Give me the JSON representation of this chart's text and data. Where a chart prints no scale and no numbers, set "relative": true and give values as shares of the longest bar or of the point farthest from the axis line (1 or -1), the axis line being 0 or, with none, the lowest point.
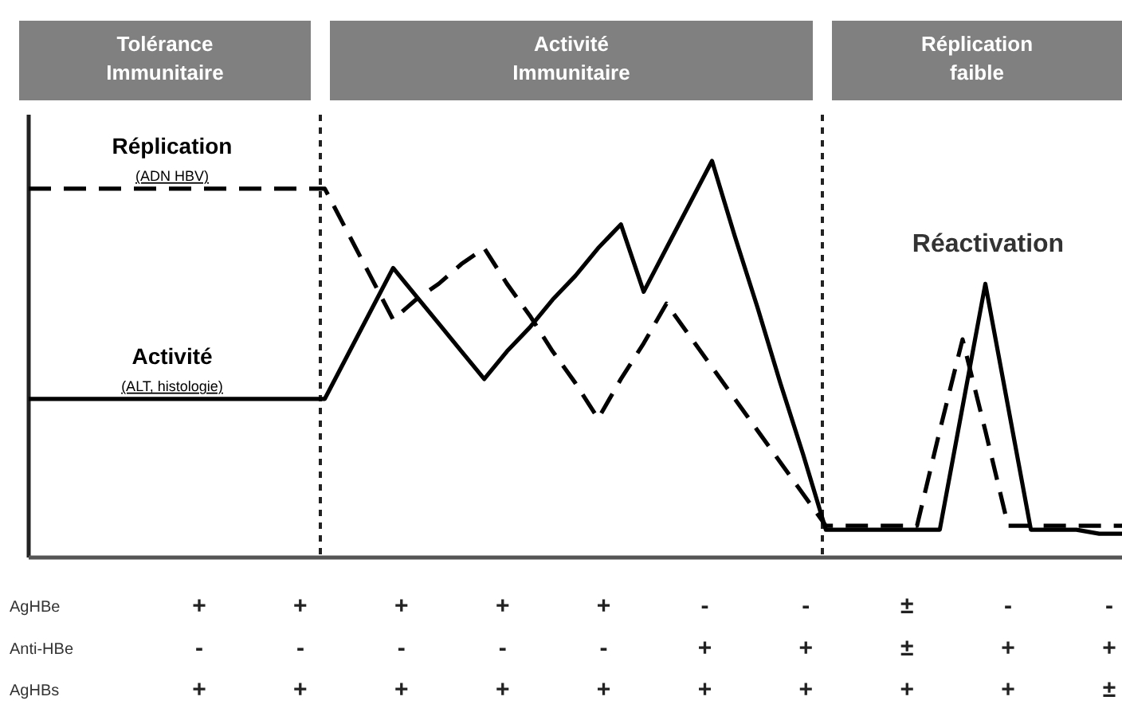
{
  "chart_data": [
    {
      "type": "line",
      "relative": true,
      "legend": false,
      "categories": [
        null,
        null,
        null,
        null,
        null,
        null,
        null,
        null,
        null,
        null,
        null,
        null,
        null,
        null,
        null,
        null,
        null,
        null,
        null,
        null,
        null,
        null,
        null,
        null,
        null,
        null,
        null,
        null,
        null,
        null,
        null,
        null,
        null,
        null,
        null,
        null,
        null,
        null,
        null,
        null,
        null,
        null,
        null,
        null,
        null,
        null,
        null,
        null,
        null
      ],
      "series": [
        {
          "name": "Réplication (ADN HBV)",
          "color": "#000000",
          "line_style": "dashed",
          "values": [
            0.93,
            0.93,
            0.93,
            0.93,
            0.93,
            0.93,
            0.93,
            0.93,
            0.93,
            0.93,
            0.93,
            0.93,
            0.93,
            0.93,
            0.82,
            0.71,
            0.6,
            0.65,
            0.69,
            0.74,
            0.78,
            0.69,
            0.61,
            0.52,
            0.44,
            0.35,
            0.45,
            0.54,
            0.64,
            0.56,
            0.48,
            0.4,
            0.32,
            0.24,
            0.16,
            0.08,
            0.08,
            0.08,
            0.08,
            0.08,
            0.32,
            0.55,
            0.32,
            0.08,
            0.08,
            0.08,
            0.08,
            0.08,
            0.08
          ]
        },
        {
          "name": "Activité (ALT, histologie)",
          "color": "#000000",
          "line_style": "solid",
          "values": [
            0.4,
            0.4,
            0.4,
            0.4,
            0.4,
            0.4,
            0.4,
            0.4,
            0.4,
            0.4,
            0.4,
            0.4,
            0.4,
            0.4,
            0.51,
            0.62,
            0.73,
            0.66,
            0.59,
            0.52,
            0.45,
            0.52,
            0.58,
            0.65,
            0.71,
            0.78,
            0.84,
            0.67,
            0.78,
            0.89,
            1,
            0.81,
            0.63,
            0.44,
            0.26,
            0.07,
            0.07,
            0.07,
            0.07,
            0.07,
            0.07,
            0.38,
            0.69,
            0.38,
            0.07,
            0.07,
            0.07,
            0.06,
            0.06
          ]
        }
      ],
      "annotations": [
        "Tolérance\nImmunitaire",
        "Activité\nImmunitaire",
        "Réplication\nfaible",
        "Réactivation"
      ]
    },
    {
      "type": "other",
      "annotations": [
        "AgHBe",
        "+",
        "+",
        "+",
        "+",
        "+",
        "-",
        "-",
        "±",
        "-",
        "-",
        "Anti-HBe",
        "-",
        "-",
        "-",
        "-",
        "-",
        "+",
        "+",
        "±",
        "+",
        "+",
        "AgHBs",
        "+",
        "+",
        "+",
        "+",
        "+",
        "+",
        "+",
        "+",
        "+",
        "±"
      ]
    }
  ]
}
